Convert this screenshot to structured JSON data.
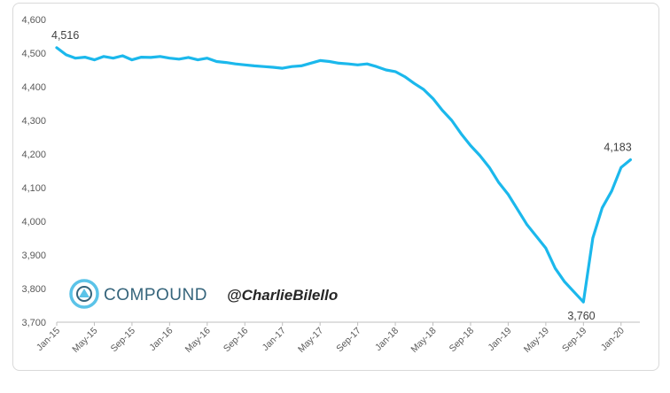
{
  "chart_data": {
    "type": "line",
    "title": "",
    "xlabel": "",
    "ylabel": "",
    "ylim": [
      3700,
      4600
    ],
    "yticks": [
      "3,700",
      "3,800",
      "3,900",
      "4,000",
      "4,100",
      "4,200",
      "4,300",
      "4,400",
      "4,500",
      "4,600"
    ],
    "xticks": [
      "Jan-15",
      "May-15",
      "Sep-15",
      "Jan-16",
      "May-16",
      "Sep-16",
      "Jan-17",
      "May-17",
      "Sep-17",
      "Jan-18",
      "May-18",
      "Sep-18",
      "Jan-19",
      "May-19",
      "Sep-19",
      "Jan-20"
    ],
    "grid": false,
    "line_color": "#1bb8ec",
    "series": [
      {
        "points": [
          [
            "Jan-15",
            4516
          ],
          [
            "Feb-15",
            4495
          ],
          [
            "Mar-15",
            4485
          ],
          [
            "Apr-15",
            4488
          ],
          [
            "May-15",
            4480
          ],
          [
            "Jun-15",
            4490
          ],
          [
            "Jul-15",
            4485
          ],
          [
            "Aug-15",
            4492
          ],
          [
            "Sep-15",
            4480
          ],
          [
            "Oct-15",
            4488
          ],
          [
            "Nov-15",
            4487
          ],
          [
            "Dec-15",
            4490
          ],
          [
            "Jan-16",
            4485
          ],
          [
            "Feb-16",
            4482
          ],
          [
            "Mar-16",
            4487
          ],
          [
            "Apr-16",
            4480
          ],
          [
            "May-16",
            4485
          ],
          [
            "Jun-16",
            4475
          ],
          [
            "Jul-16",
            4472
          ],
          [
            "Aug-16",
            4468
          ],
          [
            "Sep-16",
            4465
          ],
          [
            "Oct-16",
            4462
          ],
          [
            "Nov-16",
            4460
          ],
          [
            "Dec-16",
            4458
          ],
          [
            "Jan-17",
            4455
          ],
          [
            "Feb-17",
            4460
          ],
          [
            "Mar-17",
            4462
          ],
          [
            "Apr-17",
            4470
          ],
          [
            "May-17",
            4478
          ],
          [
            "Jun-17",
            4475
          ],
          [
            "Jul-17",
            4470
          ],
          [
            "Aug-17",
            4468
          ],
          [
            "Sep-17",
            4465
          ],
          [
            "Oct-17",
            4468
          ],
          [
            "Nov-17",
            4460
          ],
          [
            "Dec-17",
            4450
          ],
          [
            "Jan-18",
            4445
          ],
          [
            "Feb-18",
            4430
          ],
          [
            "Mar-18",
            4410
          ],
          [
            "Apr-18",
            4392
          ],
          [
            "May-18",
            4365
          ],
          [
            "Jun-18",
            4330
          ],
          [
            "Jul-18",
            4300
          ],
          [
            "Aug-18",
            4260
          ],
          [
            "Sep-18",
            4225
          ],
          [
            "Oct-18",
            4195
          ],
          [
            "Nov-18",
            4160
          ],
          [
            "Dec-18",
            4115
          ],
          [
            "Jan-19",
            4080
          ],
          [
            "Feb-19",
            4035
          ],
          [
            "Mar-19",
            3990
          ],
          [
            "Apr-19",
            3955
          ],
          [
            "May-19",
            3920
          ],
          [
            "Jun-19",
            3860
          ],
          [
            "Jul-19",
            3820
          ],
          [
            "Aug-19",
            3790
          ],
          [
            "Sep-19",
            3760
          ],
          [
            "Oct-19",
            3950
          ],
          [
            "Nov-19",
            4040
          ],
          [
            "Dec-19",
            4090
          ],
          [
            "Jan-20",
            4160
          ],
          [
            "Feb-20",
            4183
          ]
        ]
      }
    ],
    "annotations": [
      {
        "x": "Jan-15",
        "y": 4516,
        "text": "4,516"
      },
      {
        "x": "Sep-19",
        "y": 3760,
        "text": "3,760"
      },
      {
        "x": "Feb-20",
        "y": 4183,
        "text": "4,183"
      }
    ]
  },
  "branding": {
    "logo_text": "COMPOUND",
    "handle": "@CharlieBilello",
    "logo_color": "#35647b",
    "logo_accent": "#5bc3e8"
  }
}
